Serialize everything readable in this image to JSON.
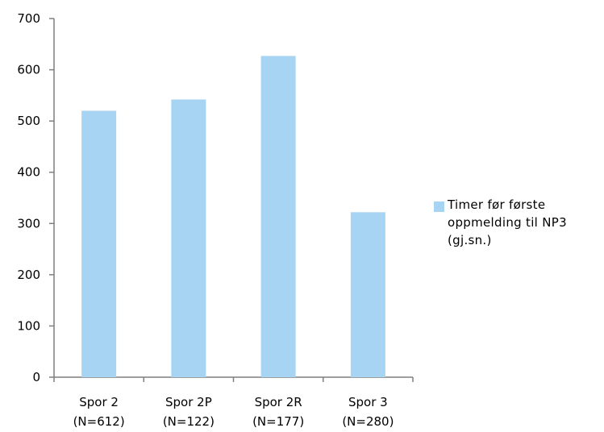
{
  "chart_data": {
    "type": "bar",
    "categories": [
      [
        "Spor 2",
        "(N=612)"
      ],
      [
        "Spor 2P",
        "(N=122)"
      ],
      [
        "Spor 2R",
        "(N=177)"
      ],
      [
        "Spor 3",
        "(N=280)"
      ]
    ],
    "series": [
      {
        "name": "Timer før første oppmelding til NP3 (gj.sn.)",
        "values": [
          520,
          542,
          627,
          322
        ],
        "color": "#a8d4f4"
      }
    ],
    "ylim": [
      0,
      700
    ],
    "yticks": [
      0,
      100,
      200,
      300,
      400,
      500,
      600,
      700
    ],
    "grid": false,
    "legend_position": "right"
  }
}
